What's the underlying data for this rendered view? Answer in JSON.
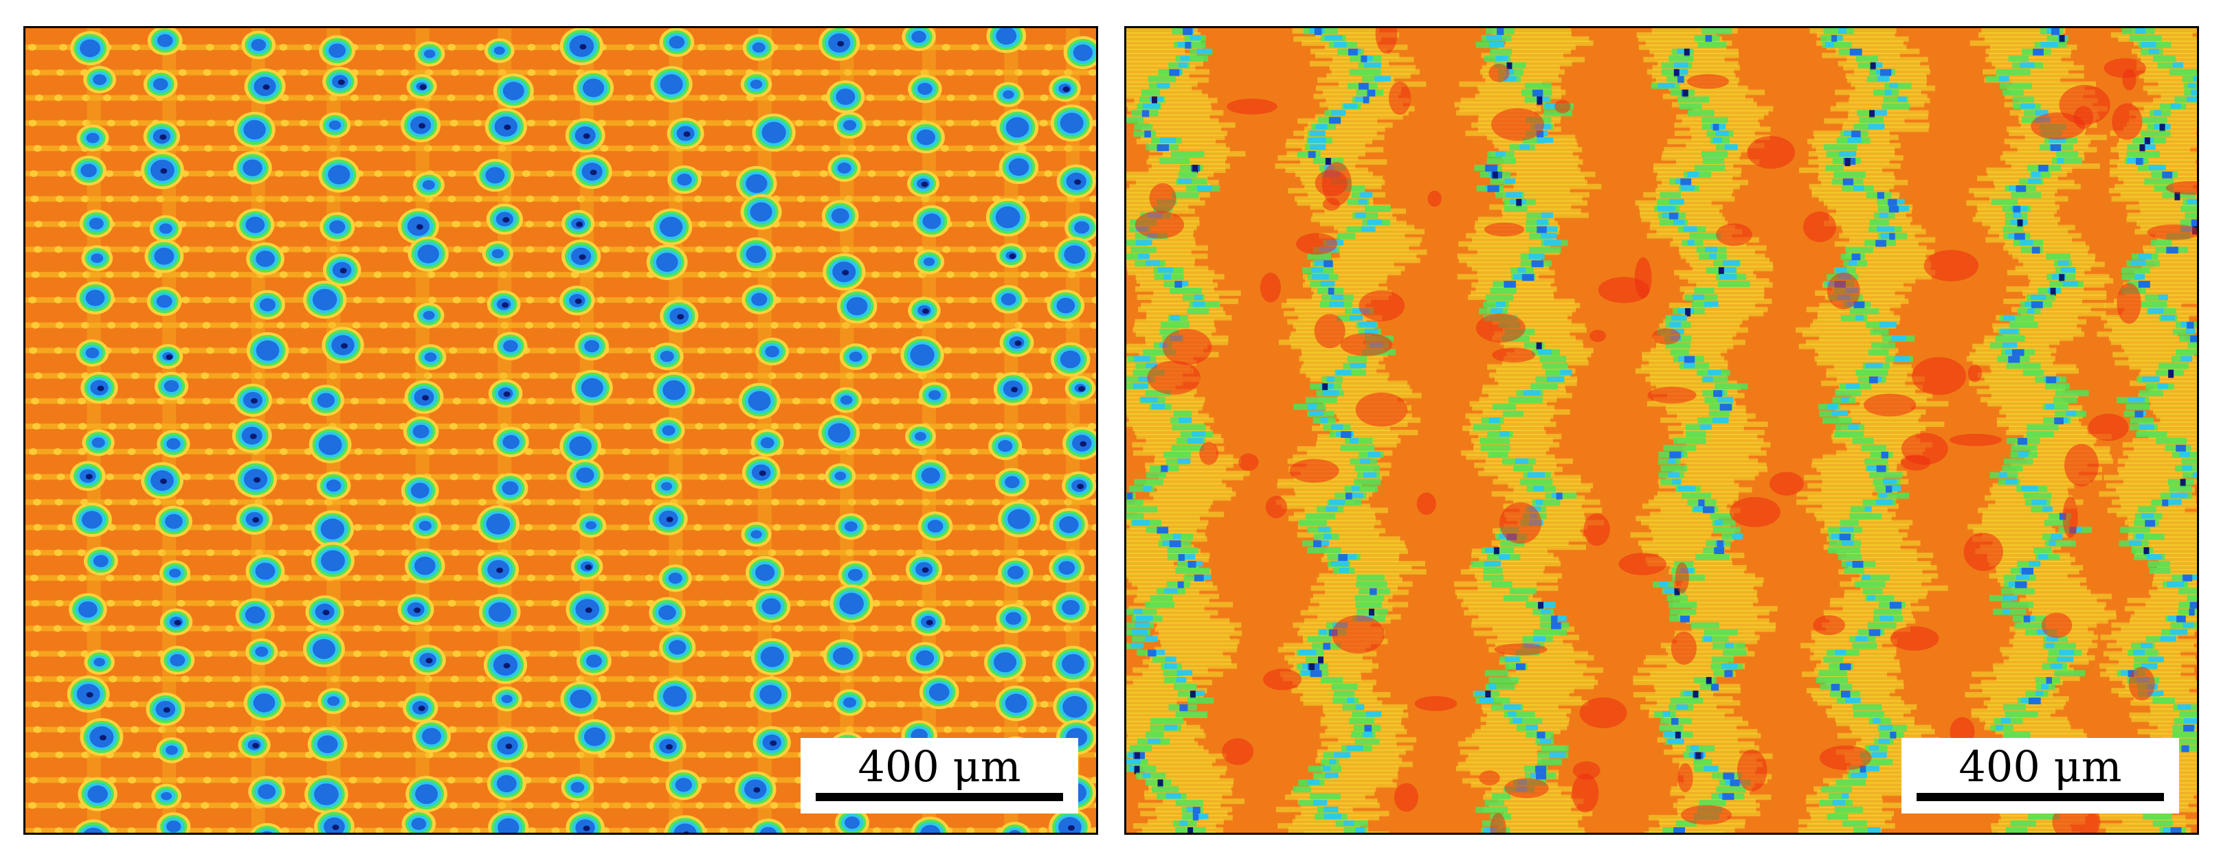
{
  "panels": [
    {
      "id": "left",
      "description_name": "surface-map-left",
      "scale_bar": {
        "label": "400 μm"
      },
      "palette": {
        "base": "#f07a18",
        "stripe": "#f6b020",
        "light": "#ffd23c",
        "green": "#4ee45a",
        "cyan": "#2ec8e8",
        "blue": "#1e6ee0",
        "navy": "#0a1a70"
      }
    },
    {
      "id": "right",
      "description_name": "surface-map-right",
      "scale_bar": {
        "label": "400 μm"
      },
      "palette": {
        "base": "#f07a18",
        "red": "#ee2c10",
        "yellow": "#f2e030",
        "green": "#4ee45a",
        "cyan": "#2ec8e8",
        "blue": "#1e6ee0",
        "navy": "#0a1a70"
      }
    }
  ]
}
